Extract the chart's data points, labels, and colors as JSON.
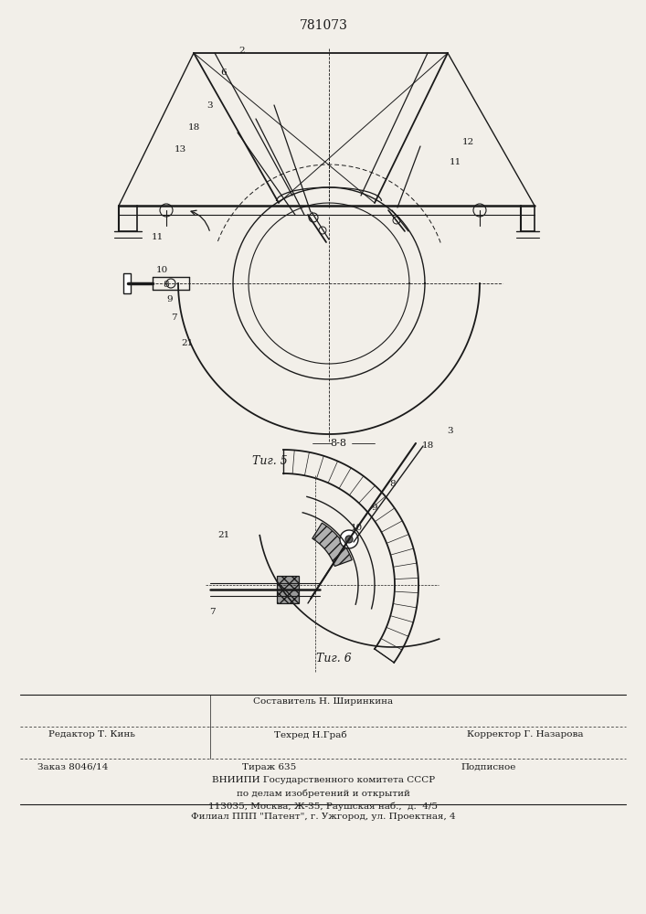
{
  "patent_number": "781073",
  "fig5_label": "Τиг. 5",
  "fig6_label": "Τиг. 6",
  "section_label": "8-8",
  "bg_color": "#f2efe9",
  "line_color": "#1a1a1a",
  "footer_line1_center_top": "Составитель Н. Ширинкина",
  "footer_line1_left": "Редактор Т. Кинь",
  "footer_line1_center": "Техред Н.Граб",
  "footer_line1_right": "Корректор Г. Назарова",
  "footer_line2_left": "Заказ 8046/14",
  "footer_line2_center": "Тираж 635",
  "footer_line2_right": "Подписное",
  "footer_line3": "ВНИИПИ Государственного комитета СССР",
  "footer_line4": "по делам изобретений и открытий",
  "footer_line5": "113035, Москва, Ж-35, Раушская наб.,  д.  4/5",
  "footer_line6": "Филиал ППП \"Патент\", г. Ужгород, ул. Проектная, 4"
}
